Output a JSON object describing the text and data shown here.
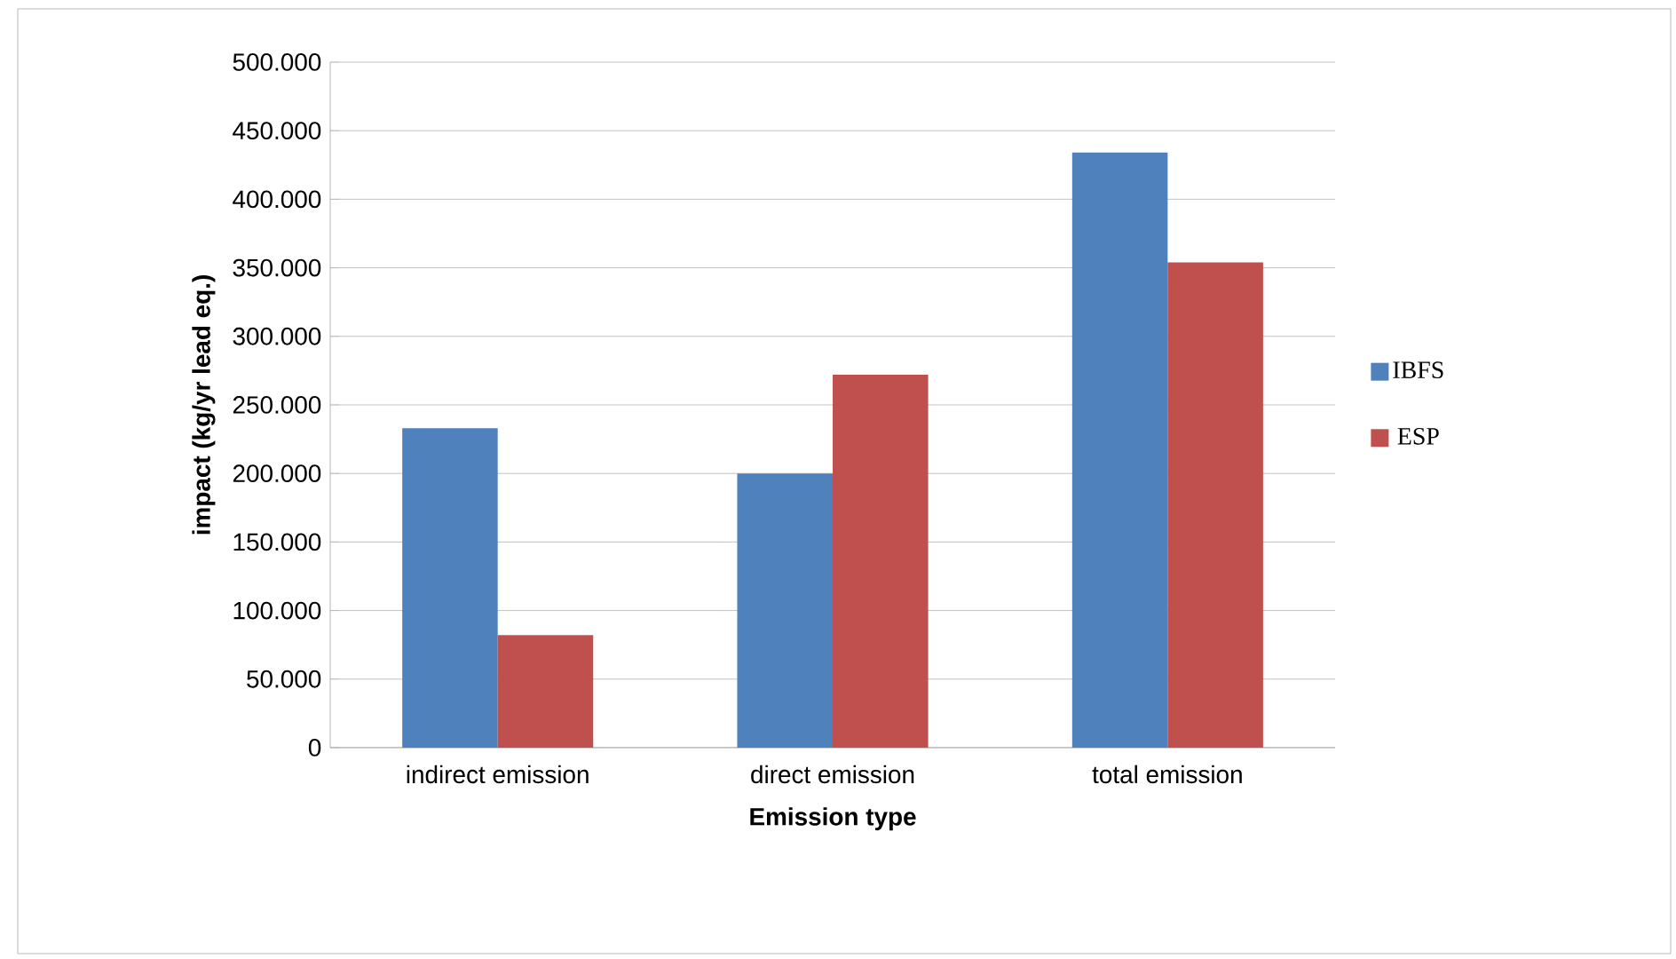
{
  "chart_data": {
    "type": "bar",
    "xlabel": "Emission type",
    "ylabel": "impact (kg/yr lead eq.)",
    "categories": [
      "indirect emission",
      "direct emission",
      "total emission"
    ],
    "series": [
      {
        "name": "IBFS",
        "color": "#4f81bd",
        "values": [
          233000,
          200000,
          434000
        ]
      },
      {
        "name": "ESP",
        "color": "#c0504d",
        "values": [
          82000,
          272000,
          354000
        ]
      }
    ],
    "ylim": [
      0,
      500000
    ],
    "yticks": [
      0,
      {
        "value": 50000,
        "label": "50.000"
      },
      {
        "value": 100000,
        "label": "100.000"
      },
      {
        "value": 150000,
        "label": "150.000"
      },
      {
        "value": 200000,
        "label": "200.000"
      },
      {
        "value": 250000,
        "label": "250.000"
      },
      {
        "value": 300000,
        "label": "300.000"
      },
      {
        "value": 350000,
        "label": "350.000"
      },
      {
        "value": 400000,
        "label": "400.000"
      },
      {
        "value": 450000,
        "label": "450.000"
      },
      {
        "value": 500000,
        "label": "500.000"
      }
    ],
    "grid": "y",
    "legend": "right"
  }
}
